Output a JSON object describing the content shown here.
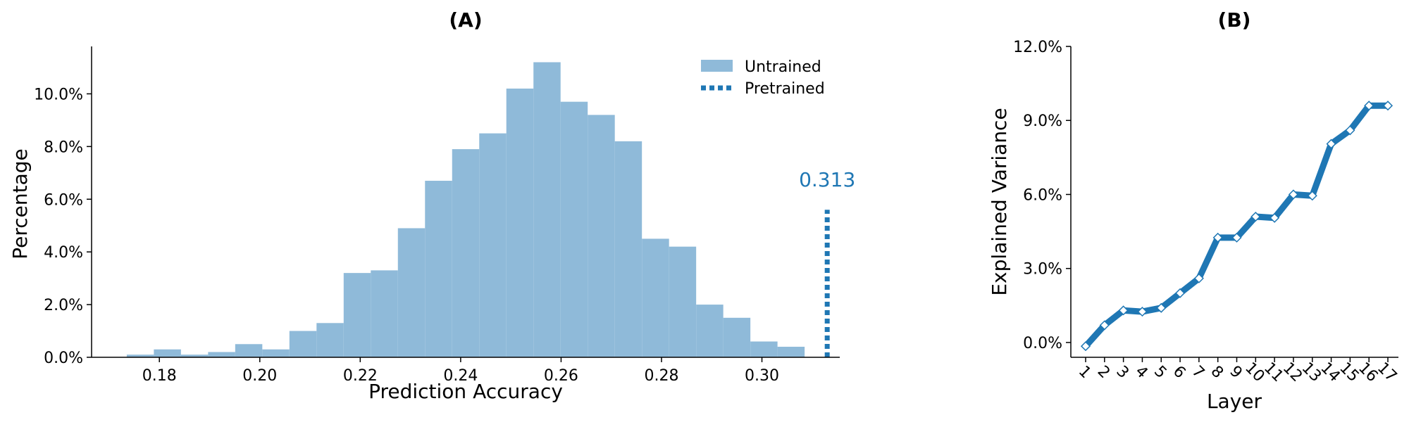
{
  "colors": {
    "hist_fill": "#8fbad9",
    "pretrained": "#1f77b4",
    "line": "#1f77b4",
    "marker_fill": "#ffffff",
    "axis": "#000000"
  },
  "chart_data": [
    {
      "type": "bar",
      "panel_title": "(A)",
      "xlabel": "Prediction Accuracy",
      "ylabel": "Percentage",
      "xlim": [
        0.1665,
        0.3155
      ],
      "ylim": [
        0,
        11.8
      ],
      "xticks": [
        0.18,
        0.2,
        0.22,
        0.24,
        0.26,
        0.28,
        0.3
      ],
      "xtick_labels": [
        "0.18",
        "0.20",
        "0.22",
        "0.24",
        "0.26",
        "0.28",
        "0.30"
      ],
      "yticks": [
        0,
        2,
        4,
        6,
        8,
        10
      ],
      "ytick_labels": [
        "0.0%",
        "2.0%",
        "4.0%",
        "6.0%",
        "8.0%",
        "10.0%"
      ],
      "bins": {
        "start": 0.1735,
        "width": 0.0054,
        "values": [
          0.1,
          0.3,
          0.1,
          0.2,
          0.5,
          0.3,
          1.0,
          1.3,
          3.2,
          3.3,
          4.9,
          6.7,
          7.9,
          8.5,
          10.2,
          11.2,
          9.7,
          9.2,
          8.2,
          4.5,
          4.2,
          2.0,
          1.5,
          0.6,
          0.4
        ]
      },
      "series": [
        {
          "name": "Untrained",
          "kind": "histogram"
        },
        {
          "name": "Pretrained",
          "kind": "vline",
          "x": 0.313,
          "y_top": 5.6
        }
      ],
      "annotations": [
        {
          "text": "0.313",
          "x": 0.313
        }
      ],
      "legend": {
        "position": "top-right",
        "entries": [
          "Untrained",
          "Pretrained"
        ]
      },
      "grid": false
    },
    {
      "type": "line",
      "panel_title": "(B)",
      "xlabel": "Layer",
      "ylabel": "Explained Variance",
      "categories": [
        "1",
        "2",
        "3",
        "4",
        "5",
        "6",
        "7",
        "8",
        "9",
        "10",
        "11",
        "12",
        "13",
        "14",
        "15",
        "16",
        "17"
      ],
      "values": [
        -0.15,
        0.7,
        1.3,
        1.25,
        1.4,
        2.0,
        2.6,
        4.25,
        4.25,
        5.1,
        5.05,
        6.0,
        5.95,
        8.05,
        8.6,
        9.6,
        9.6
      ],
      "ylim": [
        -0.6,
        12.0
      ],
      "yticks": [
        0,
        3,
        6,
        9,
        12
      ],
      "ytick_labels": [
        "0.0%",
        "3.0%",
        "6.0%",
        "9.0%",
        "12.0%"
      ],
      "grid": false
    }
  ]
}
